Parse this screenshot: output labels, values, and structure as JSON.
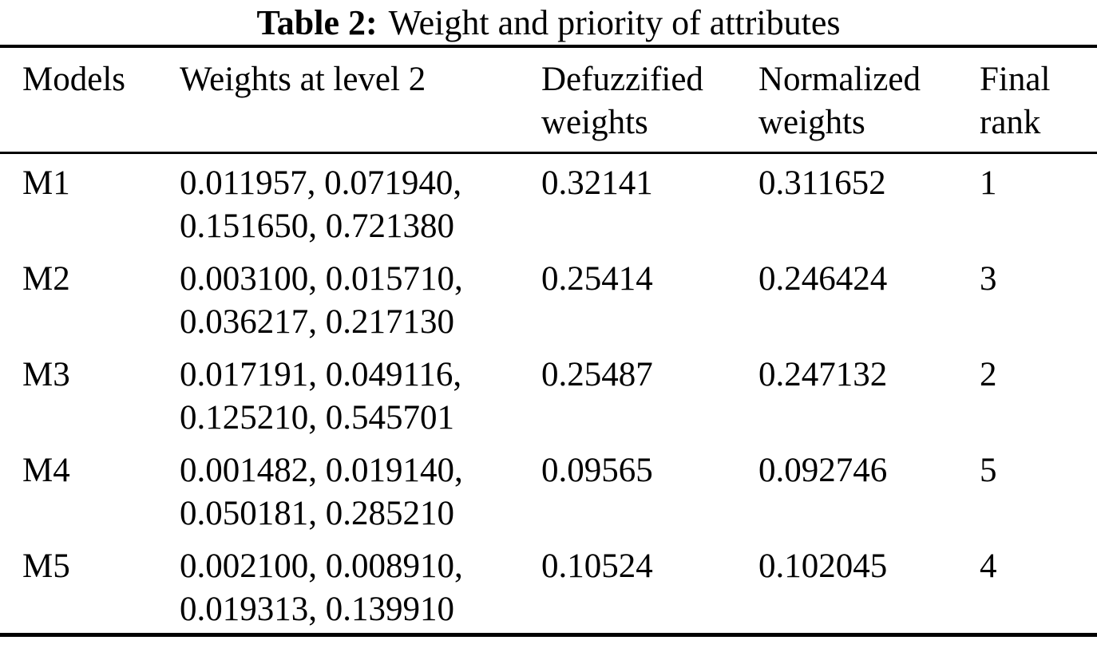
{
  "caption": {
    "label": "Table 2:",
    "text": "Weight and priority of attributes"
  },
  "colors": {
    "background": "#ffffff",
    "text": "#000000",
    "rule": "#000000"
  },
  "table": {
    "headers": {
      "models": "Models",
      "weights": "Weights at level 2",
      "defuzzified": "Defuzzified weights",
      "normalized": "Normalized weights",
      "rank": "Final rank"
    },
    "rows": [
      {
        "model": "M1",
        "weights": [
          "0.011957, 0.071940,",
          "0.151650, 0.721380"
        ],
        "defuzzified": "0.32141",
        "normalized": "0.311652",
        "rank": "1"
      },
      {
        "model": "M2",
        "weights": [
          "0.003100, 0.015710,",
          "0.036217, 0.217130"
        ],
        "defuzzified": "0.25414",
        "normalized": "0.246424",
        "rank": "3"
      },
      {
        "model": "M3",
        "weights": [
          "0.017191, 0.049116,",
          "0.125210, 0.545701"
        ],
        "defuzzified": "0.25487",
        "normalized": "0.247132",
        "rank": "2"
      },
      {
        "model": "M4",
        "weights": [
          "0.001482, 0.019140,",
          "0.050181, 0.285210"
        ],
        "defuzzified": "0.09565",
        "normalized": "0.092746",
        "rank": "5"
      },
      {
        "model": "M5",
        "weights": [
          "0.002100, 0.008910,",
          "0.019313, 0.139910"
        ],
        "defuzzified": "0.10524",
        "normalized": "0.102045",
        "rank": "4"
      }
    ]
  }
}
